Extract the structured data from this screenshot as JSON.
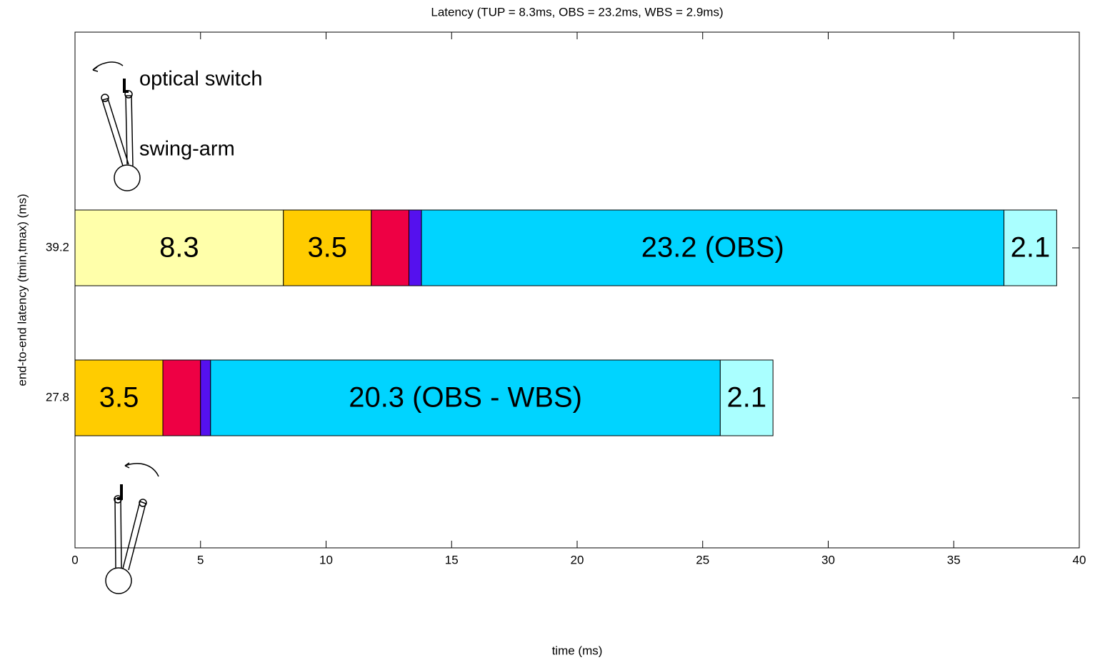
{
  "chart_data": {
    "type": "stacked-barh",
    "title": "Latency (TUP =  8.3ms, OBS = 23.2ms, WBS = 2.9ms)",
    "x_label": "time (ms)",
    "y_label": "end-to-end latency (tmin,tmax) (ms)",
    "categories": [
      "39.2",
      "27.8"
    ],
    "series": [
      {
        "color": "#ffffaa",
        "values": [
          8.3,
          null
        ],
        "show_labels": true
      },
      {
        "color": "#ffcc00",
        "values": [
          3.5,
          3.5
        ],
        "show_labels": true
      },
      {
        "color": "#ee0044",
        "values": [
          1.5,
          1.5
        ],
        "show_labels": false
      },
      {
        "color": "#5511ee",
        "values": [
          0.5,
          0.4
        ],
        "show_labels": false
      },
      {
        "color": "#00d4ff",
        "values": [
          23.2,
          20.3
        ],
        "show_labels": true,
        "value_labels": [
          "23.2 (OBS)",
          "20.3 (OBS - WBS)"
        ]
      },
      {
        "color": "#aaffff",
        "values": [
          2.1,
          2.1
        ],
        "show_labels": true
      }
    ],
    "xlim": [
      0,
      40
    ],
    "xticks": [
      0,
      5,
      10,
      15,
      20,
      25,
      30,
      35,
      40
    ],
    "annotations": [
      "optical switch",
      "swing-arm"
    ]
  }
}
